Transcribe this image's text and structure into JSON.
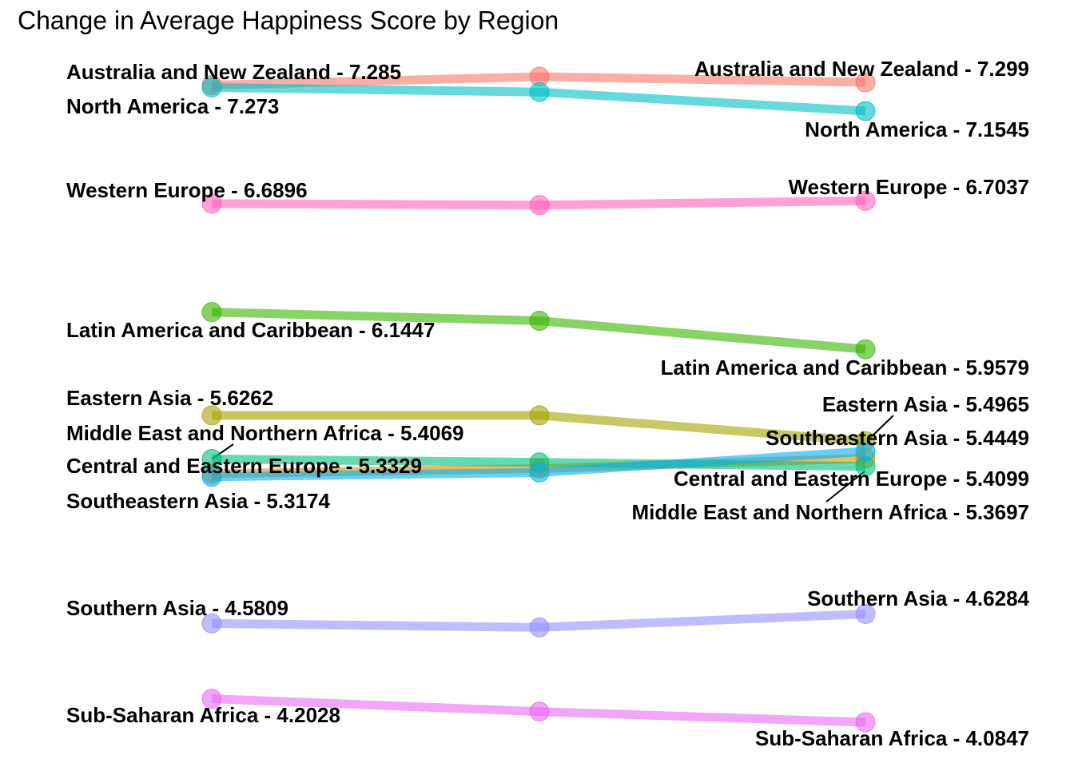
{
  "chart_data": {
    "type": "slope",
    "title": "Change in Average Happiness Score by Region",
    "series": [
      {
        "name": "Australia and New Zealand",
        "color": "#F8766D",
        "values": [
          7.285,
          7.327,
          7.299
        ],
        "value_labels": [
          "Australia and New Zealand - 7.285",
          null,
          "Australia and New Zealand - 7.299"
        ]
      },
      {
        "name": "Central and Eastern Europe",
        "color": "#D89000",
        "values": [
          5.3329,
          5.359,
          5.4099
        ],
        "value_labels": [
          "Central and Eastern Europe - 5.3329",
          null,
          "Central and Eastern Europe - 5.4099"
        ]
      },
      {
        "name": "Eastern Asia",
        "color": "#A3A500",
        "values": [
          5.6262,
          5.626,
          5.4965
        ],
        "value_labels": [
          "Eastern Asia - 5.6262",
          null,
          "Eastern Asia - 5.4965"
        ]
      },
      {
        "name": "Latin America and Caribbean",
        "color": "#39B600",
        "values": [
          6.1447,
          6.101,
          5.9579
        ],
        "value_labels": [
          "Latin America and Caribbean - 6.1447",
          null,
          "Latin America and Caribbean - 5.9579"
        ]
      },
      {
        "name": "Middle East and Northern Africa",
        "color": "#00BF7D",
        "values": [
          5.4069,
          5.39,
          5.3697
        ],
        "value_labels": [
          "Middle East and Northern Africa - 5.4069",
          null,
          "Middle East and Northern Africa - 5.3697"
        ]
      },
      {
        "name": "North America",
        "color": "#00BFC4",
        "values": [
          7.273,
          7.25,
          7.1545
        ],
        "value_labels": [
          "North America - 7.273",
          null,
          "North America - 7.1545"
        ]
      },
      {
        "name": "Southeastern Asia",
        "color": "#00B0F6",
        "values": [
          5.3174,
          5.339,
          5.4449
        ],
        "value_labels": [
          "Southeastern Asia - 5.3174",
          null,
          "Southeastern Asia - 5.4449"
        ]
      },
      {
        "name": "Southern Asia",
        "color": "#9590FF",
        "values": [
          4.5809,
          4.561,
          4.6284
        ],
        "value_labels": [
          "Southern Asia - 4.5809",
          null,
          "Southern Asia - 4.6284"
        ]
      },
      {
        "name": "Sub-Saharan Africa",
        "color": "#E76BF3",
        "values": [
          4.2028,
          4.138,
          4.0847
        ],
        "value_labels": [
          "Sub-Saharan Africa - 4.2028",
          null,
          "Sub-Saharan Africa - 4.0847"
        ]
      },
      {
        "name": "Western Europe",
        "color": "#FF62BC",
        "values": [
          6.6896,
          6.682,
          6.7037
        ],
        "value_labels": [
          "Western Europe - 6.6896",
          null,
          "Western Europe - 6.7037"
        ]
      }
    ]
  }
}
